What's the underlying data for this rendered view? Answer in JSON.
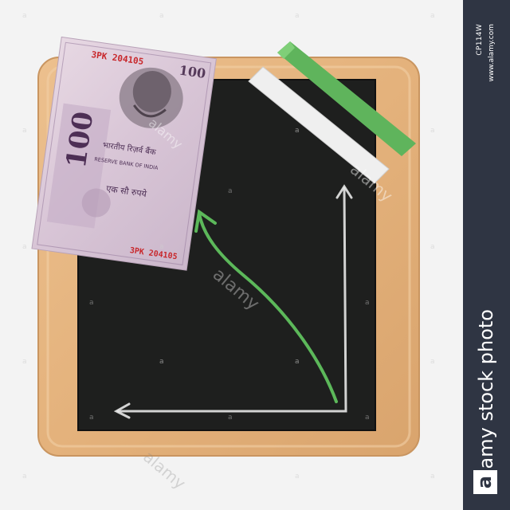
{
  "banknote": {
    "serial_top": "3PK 204105",
    "serial_bottom": "3PK 204105",
    "denomination": "100",
    "hindi_text": "भारतीय रिज़र्व बैंक",
    "english_text": "RESERVE BANK OF INDIA",
    "amount_hindi": "एक सौ रुपये"
  },
  "watermark": {
    "brand": "alamy",
    "badge_letter": "a",
    "image_id": "CP114W",
    "url": "www.alamy.com",
    "tagline": "alamy stock photo"
  },
  "colors": {
    "board": "#1e1f1e",
    "frame": "#e7b885",
    "chalk_green": "#5cb85a",
    "chalk_white": "#eeeeee",
    "banner": "#2f3543"
  }
}
